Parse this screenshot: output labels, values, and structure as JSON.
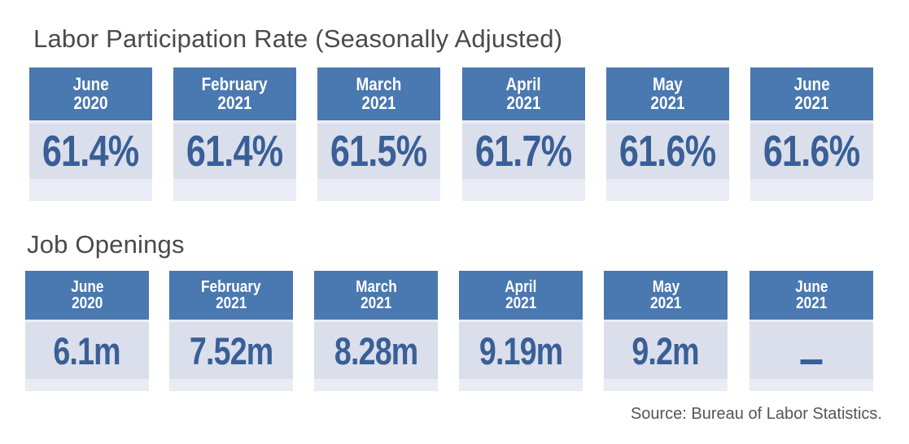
{
  "labor_participation": {
    "title": "Labor Participation Rate (Seasonally Adjusted)",
    "cards": [
      {
        "month": "June",
        "year": "2020",
        "value": "61.4%"
      },
      {
        "month": "February",
        "year": "2021",
        "value": "61.4%"
      },
      {
        "month": "March",
        "year": "2021",
        "value": "61.5%"
      },
      {
        "month": "April",
        "year": "2021",
        "value": "61.7%"
      },
      {
        "month": "May",
        "year": "2021",
        "value": "61.6%"
      },
      {
        "month": "June",
        "year": "2021",
        "value": "61.6%"
      }
    ]
  },
  "job_openings": {
    "title": "Job Openings",
    "cards": [
      {
        "month": "June",
        "year": "2020",
        "value": "6.1m"
      },
      {
        "month": "February",
        "year": "2021",
        "value": "7.52m"
      },
      {
        "month": "March",
        "year": "2021",
        "value": "8.28m"
      },
      {
        "month": "April",
        "year": "2021",
        "value": "9.19m"
      },
      {
        "month": "May",
        "year": "2021",
        "value": "9.2m"
      },
      {
        "month": "June",
        "year": "2021",
        "value": "—",
        "missing": true
      }
    ]
  },
  "source": "Source: Bureau of Labor Statistics.",
  "colors": {
    "header_bg": "#4a78b0",
    "value_bg": "#dadfeb",
    "value_text": "#3a5f97",
    "title_text": "#4a4a4a"
  }
}
